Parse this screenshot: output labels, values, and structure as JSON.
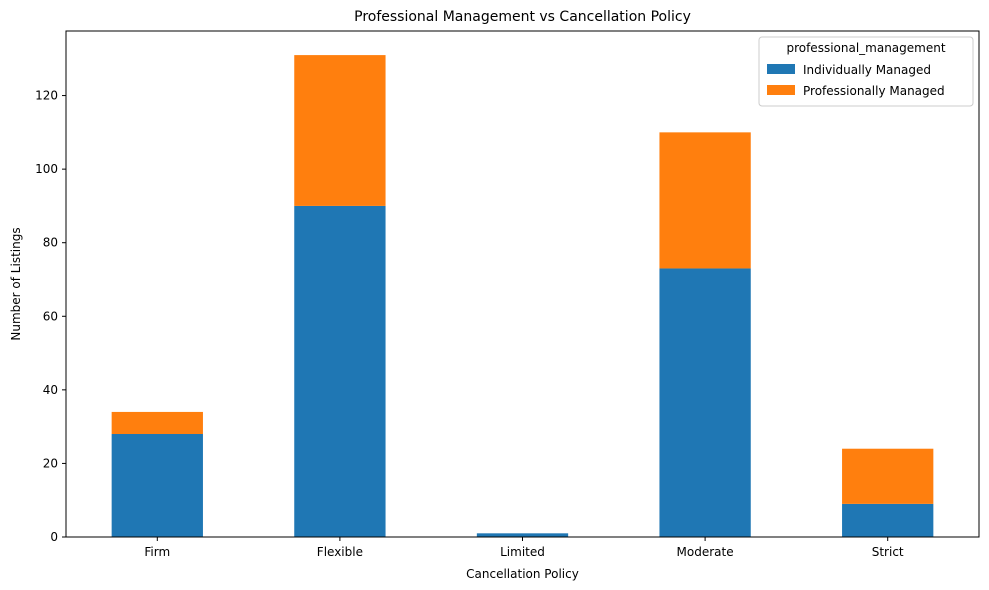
{
  "chart_data": {
    "type": "bar",
    "stacked": true,
    "title": "Professional Management vs Cancellation Policy",
    "xlabel": "Cancellation Policy",
    "ylabel": "Number of Listings",
    "categories": [
      "Firm",
      "Flexible",
      "Limited",
      "Moderate",
      "Strict"
    ],
    "series": [
      {
        "name": "Individually Managed",
        "color": "#1f77b4",
        "values": [
          28,
          90,
          1,
          73,
          9
        ]
      },
      {
        "name": "Professionally Managed",
        "color": "#ff7f0e",
        "values": [
          6,
          41,
          0,
          37,
          15
        ]
      }
    ],
    "ylim": [
      0,
      137.55
    ],
    "yticks": [
      0,
      20,
      40,
      60,
      80,
      100,
      120
    ],
    "grid": false,
    "legend": {
      "title": "professional_management",
      "position": "top-right"
    }
  }
}
